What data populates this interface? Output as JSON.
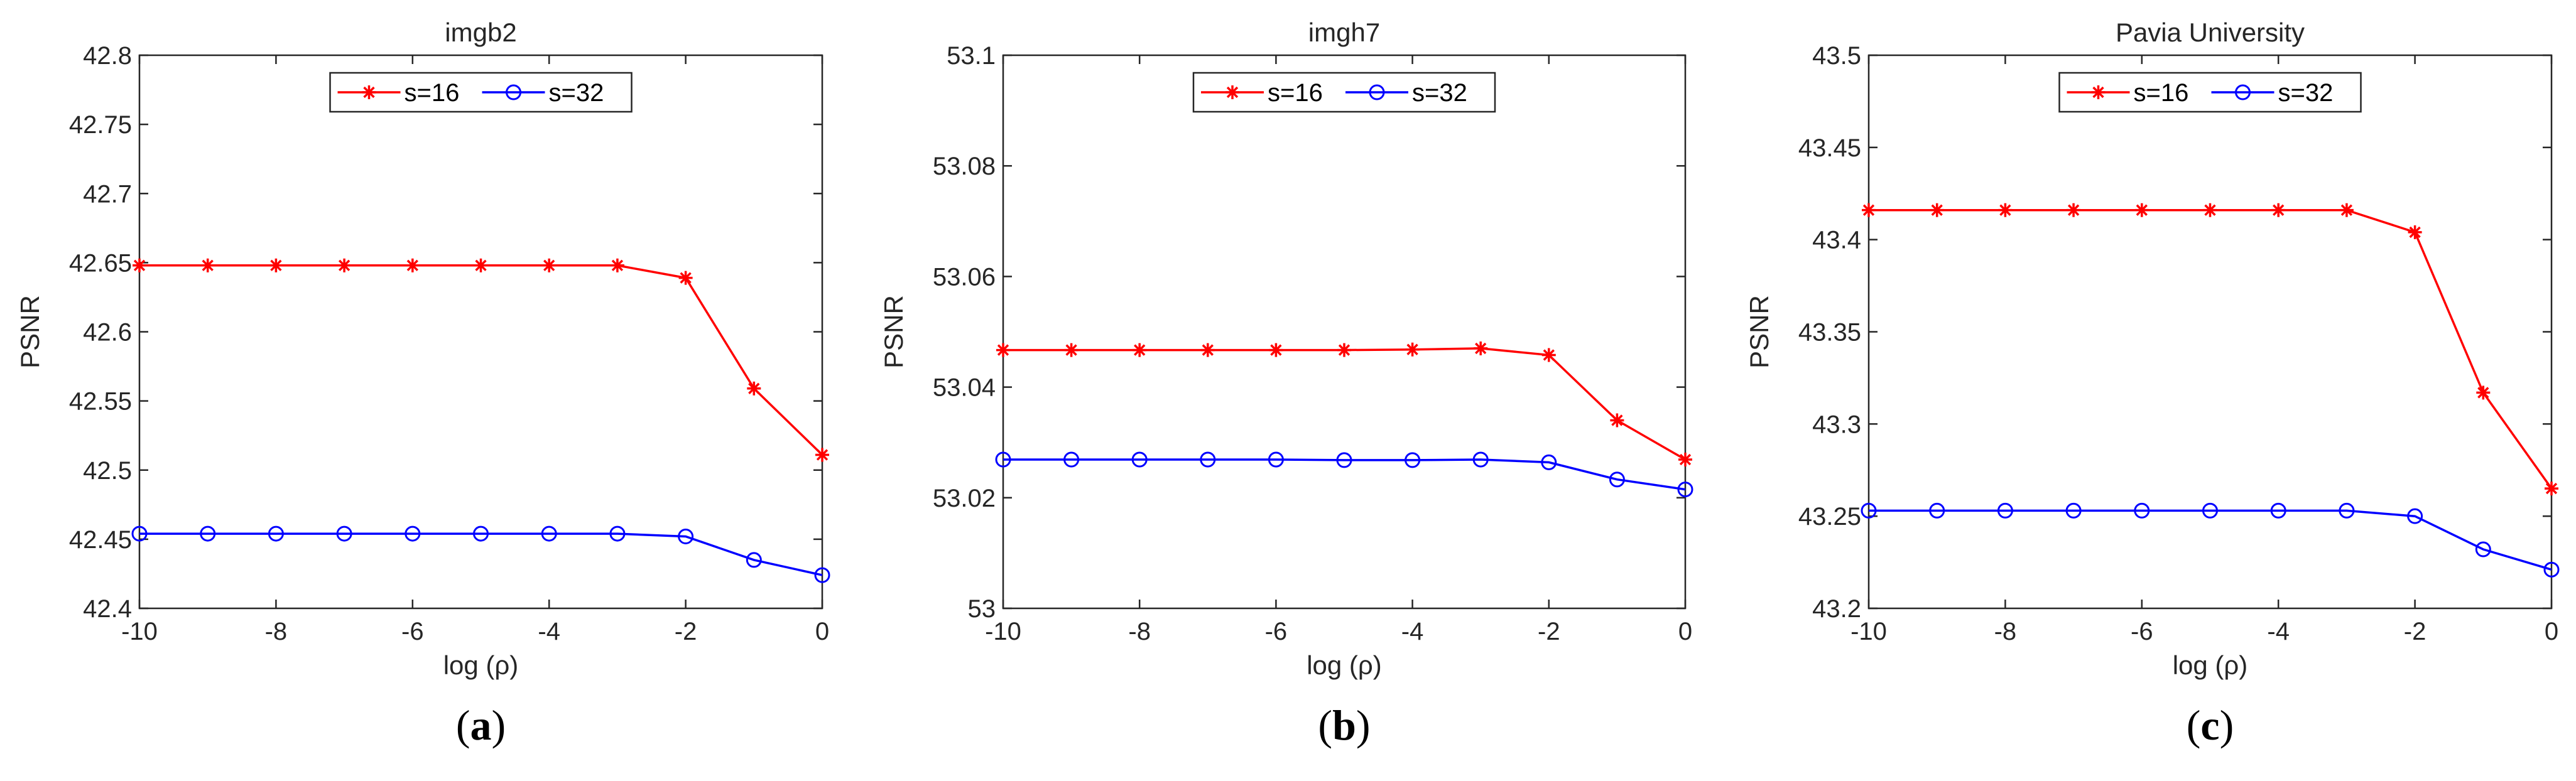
{
  "figure": {
    "colors": {
      "s16": "#ff0000",
      "s32": "#0000ff",
      "axis": "#262626"
    }
  },
  "chart_data": [
    {
      "type": "line",
      "title": "imgb2",
      "xlabel": "log (ρ)",
      "ylabel": "PSNR",
      "caption": "a",
      "xlim": [
        -10,
        0
      ],
      "ylim": [
        42.4,
        42.8
      ],
      "xticks": [
        -10,
        -8,
        -6,
        -4,
        -2,
        0
      ],
      "xtick_labels": [
        "-10",
        "-8",
        "-6",
        "-4",
        "-2",
        "0"
      ],
      "yticks": [
        42.4,
        42.45,
        42.5,
        42.55,
        42.6,
        42.65,
        42.7,
        42.75,
        42.8
      ],
      "ytick_labels": [
        "42.4",
        "42.45",
        "42.5",
        "42.55",
        "42.6",
        "42.65",
        "42.7",
        "42.75",
        "42.8"
      ],
      "legend": "top-center",
      "x": [
        -10,
        -9,
        -8,
        -7,
        -6,
        -5,
        -4,
        -3,
        -2,
        -1,
        0
      ],
      "series": [
        {
          "name": "s=16",
          "marker": "asterisk",
          "color": "#ff0000",
          "values": [
            42.648,
            42.648,
            42.648,
            42.648,
            42.648,
            42.648,
            42.648,
            42.648,
            42.639,
            42.559,
            42.511
          ]
        },
        {
          "name": "s=32",
          "marker": "circle",
          "color": "#0000ff",
          "values": [
            42.454,
            42.454,
            42.454,
            42.454,
            42.454,
            42.454,
            42.454,
            42.454,
            42.452,
            42.435,
            42.424
          ]
        }
      ]
    },
    {
      "type": "line",
      "title": "imgh7",
      "xlabel": "log (ρ)",
      "ylabel": "PSNR",
      "caption": "b",
      "xlim": [
        -10,
        0
      ],
      "ylim": [
        53.0,
        53.1
      ],
      "xticks": [
        -10,
        -8,
        -6,
        -4,
        -2,
        0
      ],
      "xtick_labels": [
        "-10",
        "-8",
        "-6",
        "-4",
        "-2",
        "0"
      ],
      "yticks": [
        53.0,
        53.02,
        53.04,
        53.06,
        53.08,
        53.1
      ],
      "ytick_labels": [
        "53",
        "53.02",
        "53.04",
        "53.06",
        "53.08",
        "53.1"
      ],
      "legend": "top-center",
      "x": [
        -10,
        -9,
        -8,
        -7,
        -6,
        -5,
        -4,
        -3,
        -2,
        -1,
        0
      ],
      "series": [
        {
          "name": "s=16",
          "marker": "asterisk",
          "color": "#ff0000",
          "values": [
            53.0467,
            53.0467,
            53.0467,
            53.0467,
            53.0467,
            53.0467,
            53.0468,
            53.047,
            53.0458,
            53.034,
            53.0269
          ]
        },
        {
          "name": "s=32",
          "marker": "circle",
          "color": "#0000ff",
          "values": [
            53.0269,
            53.0269,
            53.0269,
            53.0269,
            53.0269,
            53.0268,
            53.0268,
            53.0269,
            53.0264,
            53.0233,
            53.0215
          ]
        }
      ]
    },
    {
      "type": "line",
      "title": "Pavia University",
      "xlabel": "log (ρ)",
      "ylabel": "PSNR",
      "caption": "c",
      "xlim": [
        -10,
        0
      ],
      "ylim": [
        43.2,
        43.5
      ],
      "xticks": [
        -10,
        -8,
        -6,
        -4,
        -2,
        0
      ],
      "xtick_labels": [
        "-10",
        "-8",
        "-6",
        "-4",
        "-2",
        "0"
      ],
      "yticks": [
        43.2,
        43.25,
        43.3,
        43.35,
        43.4,
        43.45,
        43.5
      ],
      "ytick_labels": [
        "43.2",
        "43.25",
        "43.3",
        "43.35",
        "43.4",
        "43.45",
        "43.5"
      ],
      "legend": "top-center",
      "x": [
        -10,
        -9,
        -8,
        -7,
        -6,
        -5,
        -4,
        -3,
        -2,
        -1,
        0
      ],
      "series": [
        {
          "name": "s=16",
          "marker": "asterisk",
          "color": "#ff0000",
          "values": [
            43.416,
            43.416,
            43.416,
            43.416,
            43.416,
            43.416,
            43.416,
            43.416,
            43.404,
            43.317,
            43.265
          ]
        },
        {
          "name": "s=32",
          "marker": "circle",
          "color": "#0000ff",
          "values": [
            43.253,
            43.253,
            43.253,
            43.253,
            43.253,
            43.253,
            43.253,
            43.253,
            43.25,
            43.232,
            43.221
          ]
        }
      ]
    }
  ]
}
